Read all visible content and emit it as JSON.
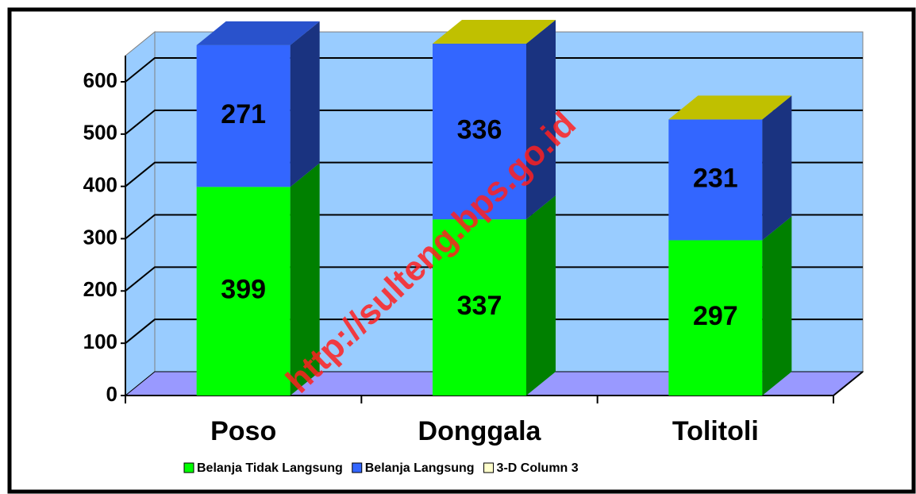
{
  "chart_data": {
    "type": "bar3d_stacked",
    "categories": [
      "Poso",
      "Donggala",
      "Tolitoli"
    ],
    "series": [
      {
        "name": "Belanja Tidak Langsung",
        "color": "#00ff00",
        "values": [
          399,
          337,
          297
        ]
      },
      {
        "name": "Belanja Langsung",
        "color": "#3366ff",
        "values": [
          271,
          336,
          231
        ]
      },
      {
        "name": "3-D Column 3",
        "color": "#ffffcc",
        "values": [
          null,
          0,
          0
        ]
      }
    ],
    "ylim": [
      0,
      650
    ],
    "yticks": [
      0,
      100,
      200,
      300,
      400,
      500,
      600
    ],
    "grid": true,
    "wall_color": "#99ccff",
    "floor_color": "#9999ff",
    "legend": "bottom",
    "watermark": "http://sulteng.bps.go.id"
  }
}
